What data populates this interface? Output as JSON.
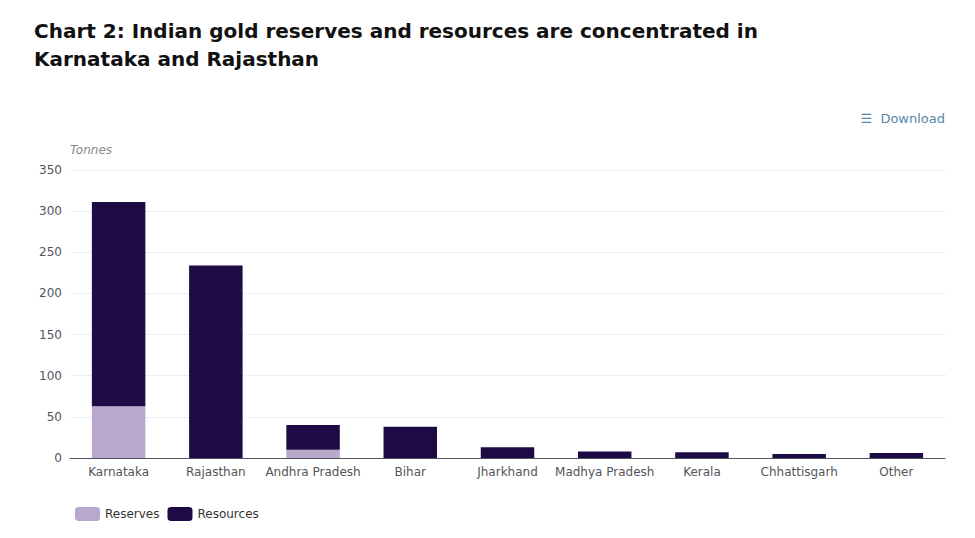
{
  "chart_data": {
    "type": "bar",
    "stacked": true,
    "title": "Chart 2: Indian gold reserves and resources are concentrated in\nKarnataka and Rajasthan",
    "y_label": "Tonnes",
    "annotations": [
      "☰  Download"
    ],
    "categories": [
      "Karnataka",
      "Rajasthan",
      "Andhra Pradesh",
      "Bihar",
      "Jharkhand",
      "Madhya Pradesh",
      "Kerala",
      "Chhattisgarh",
      "Other"
    ],
    "series": [
      {
        "name": "Reserves",
        "color": "#b8a8cc",
        "values": [
          63,
          0,
          10,
          0,
          0,
          0,
          0,
          0,
          0
        ]
      },
      {
        "name": "Resources",
        "color": "#1e0a45",
        "values": [
          248,
          234,
          30,
          38,
          13,
          8,
          7,
          5,
          6
        ]
      }
    ],
    "ylim": [
      0,
      350
    ],
    "yticks": [
      0,
      50,
      100,
      150,
      200,
      250,
      300,
      350
    ],
    "grid": true,
    "legend": "lower left"
  }
}
